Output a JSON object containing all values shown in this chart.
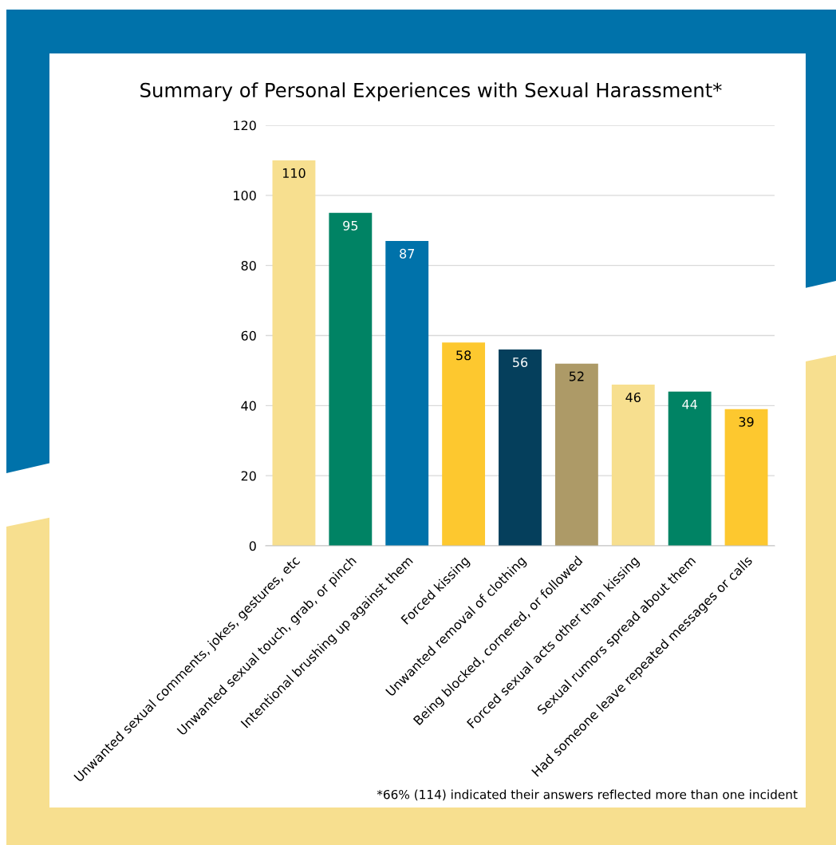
{
  "chart_data": {
    "type": "bar",
    "title": "Summary of Personal Experiences with Sexual Harassment*",
    "categories": [
      "Unwanted sexual comments, jokes, gestures, etc",
      "Unwanted sexual touch, grab, or pinch",
      "Intentional brushing up against them",
      "Forced kissing",
      "Unwanted removal of clothing",
      "Being blocked, cornered, or followed",
      "Forced sexual acts other than kissing",
      "Sexual rumors spread about them",
      "Had someone leave repeated messages or calls"
    ],
    "values": [
      110,
      95,
      87,
      58,
      56,
      52,
      46,
      44,
      39
    ],
    "colors": [
      "#f7df8f",
      "#008364",
      "#0072aa",
      "#fdc82f",
      "#053f5c",
      "#ad9a67",
      "#f7df8f",
      "#008364",
      "#fdc82f"
    ],
    "ylim": [
      0,
      120
    ],
    "yticks": [
      0,
      20,
      40,
      60,
      80,
      100,
      120
    ],
    "grid": "y",
    "data_labels": true,
    "annotations": [
      "*66% (114) indicated their answers reflected more than one incident"
    ]
  }
}
